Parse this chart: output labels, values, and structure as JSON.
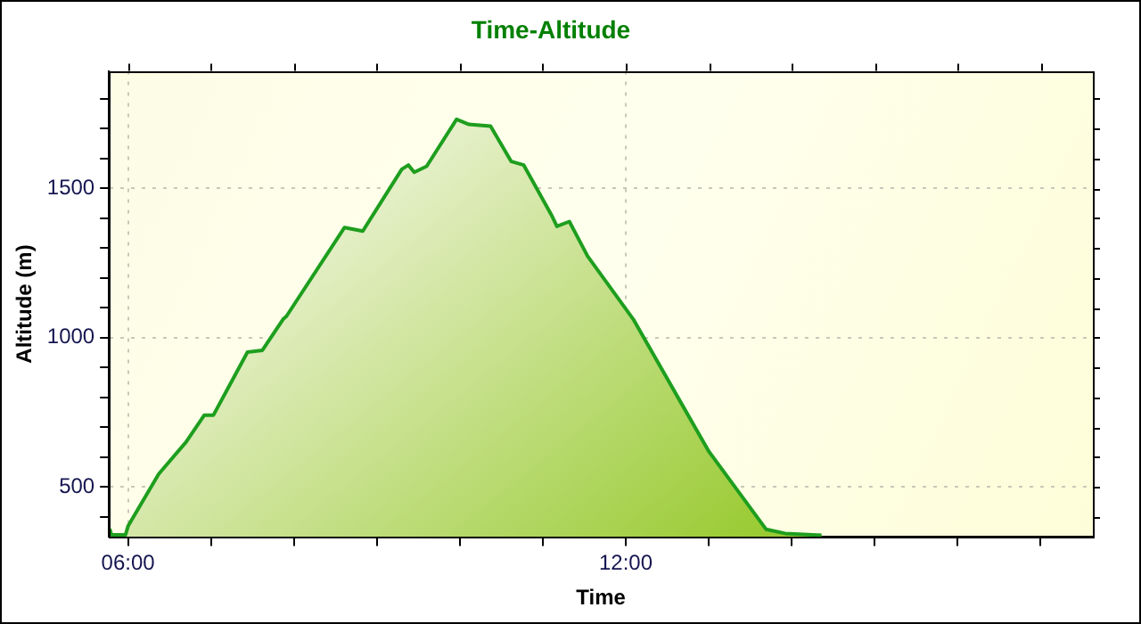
{
  "chart_data": {
    "type": "area",
    "title": "Time-Altitude",
    "xlabel": "Time",
    "ylabel": "Altitude (m)",
    "xlim": [
      5.77,
      17.63
    ],
    "xticks": [
      {
        "value": 6,
        "label": "06:00"
      },
      {
        "value": 7,
        "label": null
      },
      {
        "value": 8,
        "label": null
      },
      {
        "value": 9,
        "label": null
      },
      {
        "value": 10,
        "label": null
      },
      {
        "value": 11,
        "label": null
      },
      {
        "value": 12,
        "label": "12:00"
      },
      {
        "value": 13,
        "label": null
      },
      {
        "value": 14,
        "label": null
      },
      {
        "value": 15,
        "label": null
      },
      {
        "value": 16,
        "label": null
      },
      {
        "value": 17,
        "label": null
      }
    ],
    "ylim": [
      333,
      1893
    ],
    "yticks": [
      {
        "value": 400,
        "label": null
      },
      500,
      {
        "value": 600,
        "label": null
      },
      {
        "value": 700,
        "label": null
      },
      {
        "value": 800,
        "label": null
      },
      {
        "value": 900,
        "label": null
      },
      1000,
      {
        "value": 1100,
        "label": null
      },
      {
        "value": 1200,
        "label": null
      },
      {
        "value": 1300,
        "label": null
      },
      {
        "value": 1400,
        "label": null
      },
      1500,
      {
        "value": 1600,
        "label": null
      },
      {
        "value": 1700,
        "label": null
      },
      {
        "value": 1800,
        "label": null
      }
    ],
    "grid": true,
    "legend": false,
    "marker": "none",
    "line_style": "solid",
    "series": [
      {
        "color": "#1e9e1e",
        "x": [
          5.78,
          5.8,
          5.97,
          6.0,
          6.37,
          6.7,
          6.92,
          7.03,
          7.44,
          7.62,
          7.87,
          7.91,
          8.61,
          8.83,
          9.3,
          9.38,
          9.45,
          9.6,
          9.96,
          10.11,
          10.37,
          10.62,
          10.77,
          11.1,
          11.17,
          11.32,
          11.54,
          12.09,
          13.0,
          13.69,
          13.92,
          14.36
        ],
        "values": [
          360,
          340,
          340,
          369,
          544,
          651,
          741,
          741,
          952,
          958,
          1062,
          1072,
          1369,
          1357,
          1564,
          1578,
          1554,
          1574,
          1731,
          1714,
          1708,
          1590,
          1578,
          1413,
          1373,
          1389,
          1273,
          1062,
          620,
          359,
          345,
          339
        ]
      }
    ]
  }
}
